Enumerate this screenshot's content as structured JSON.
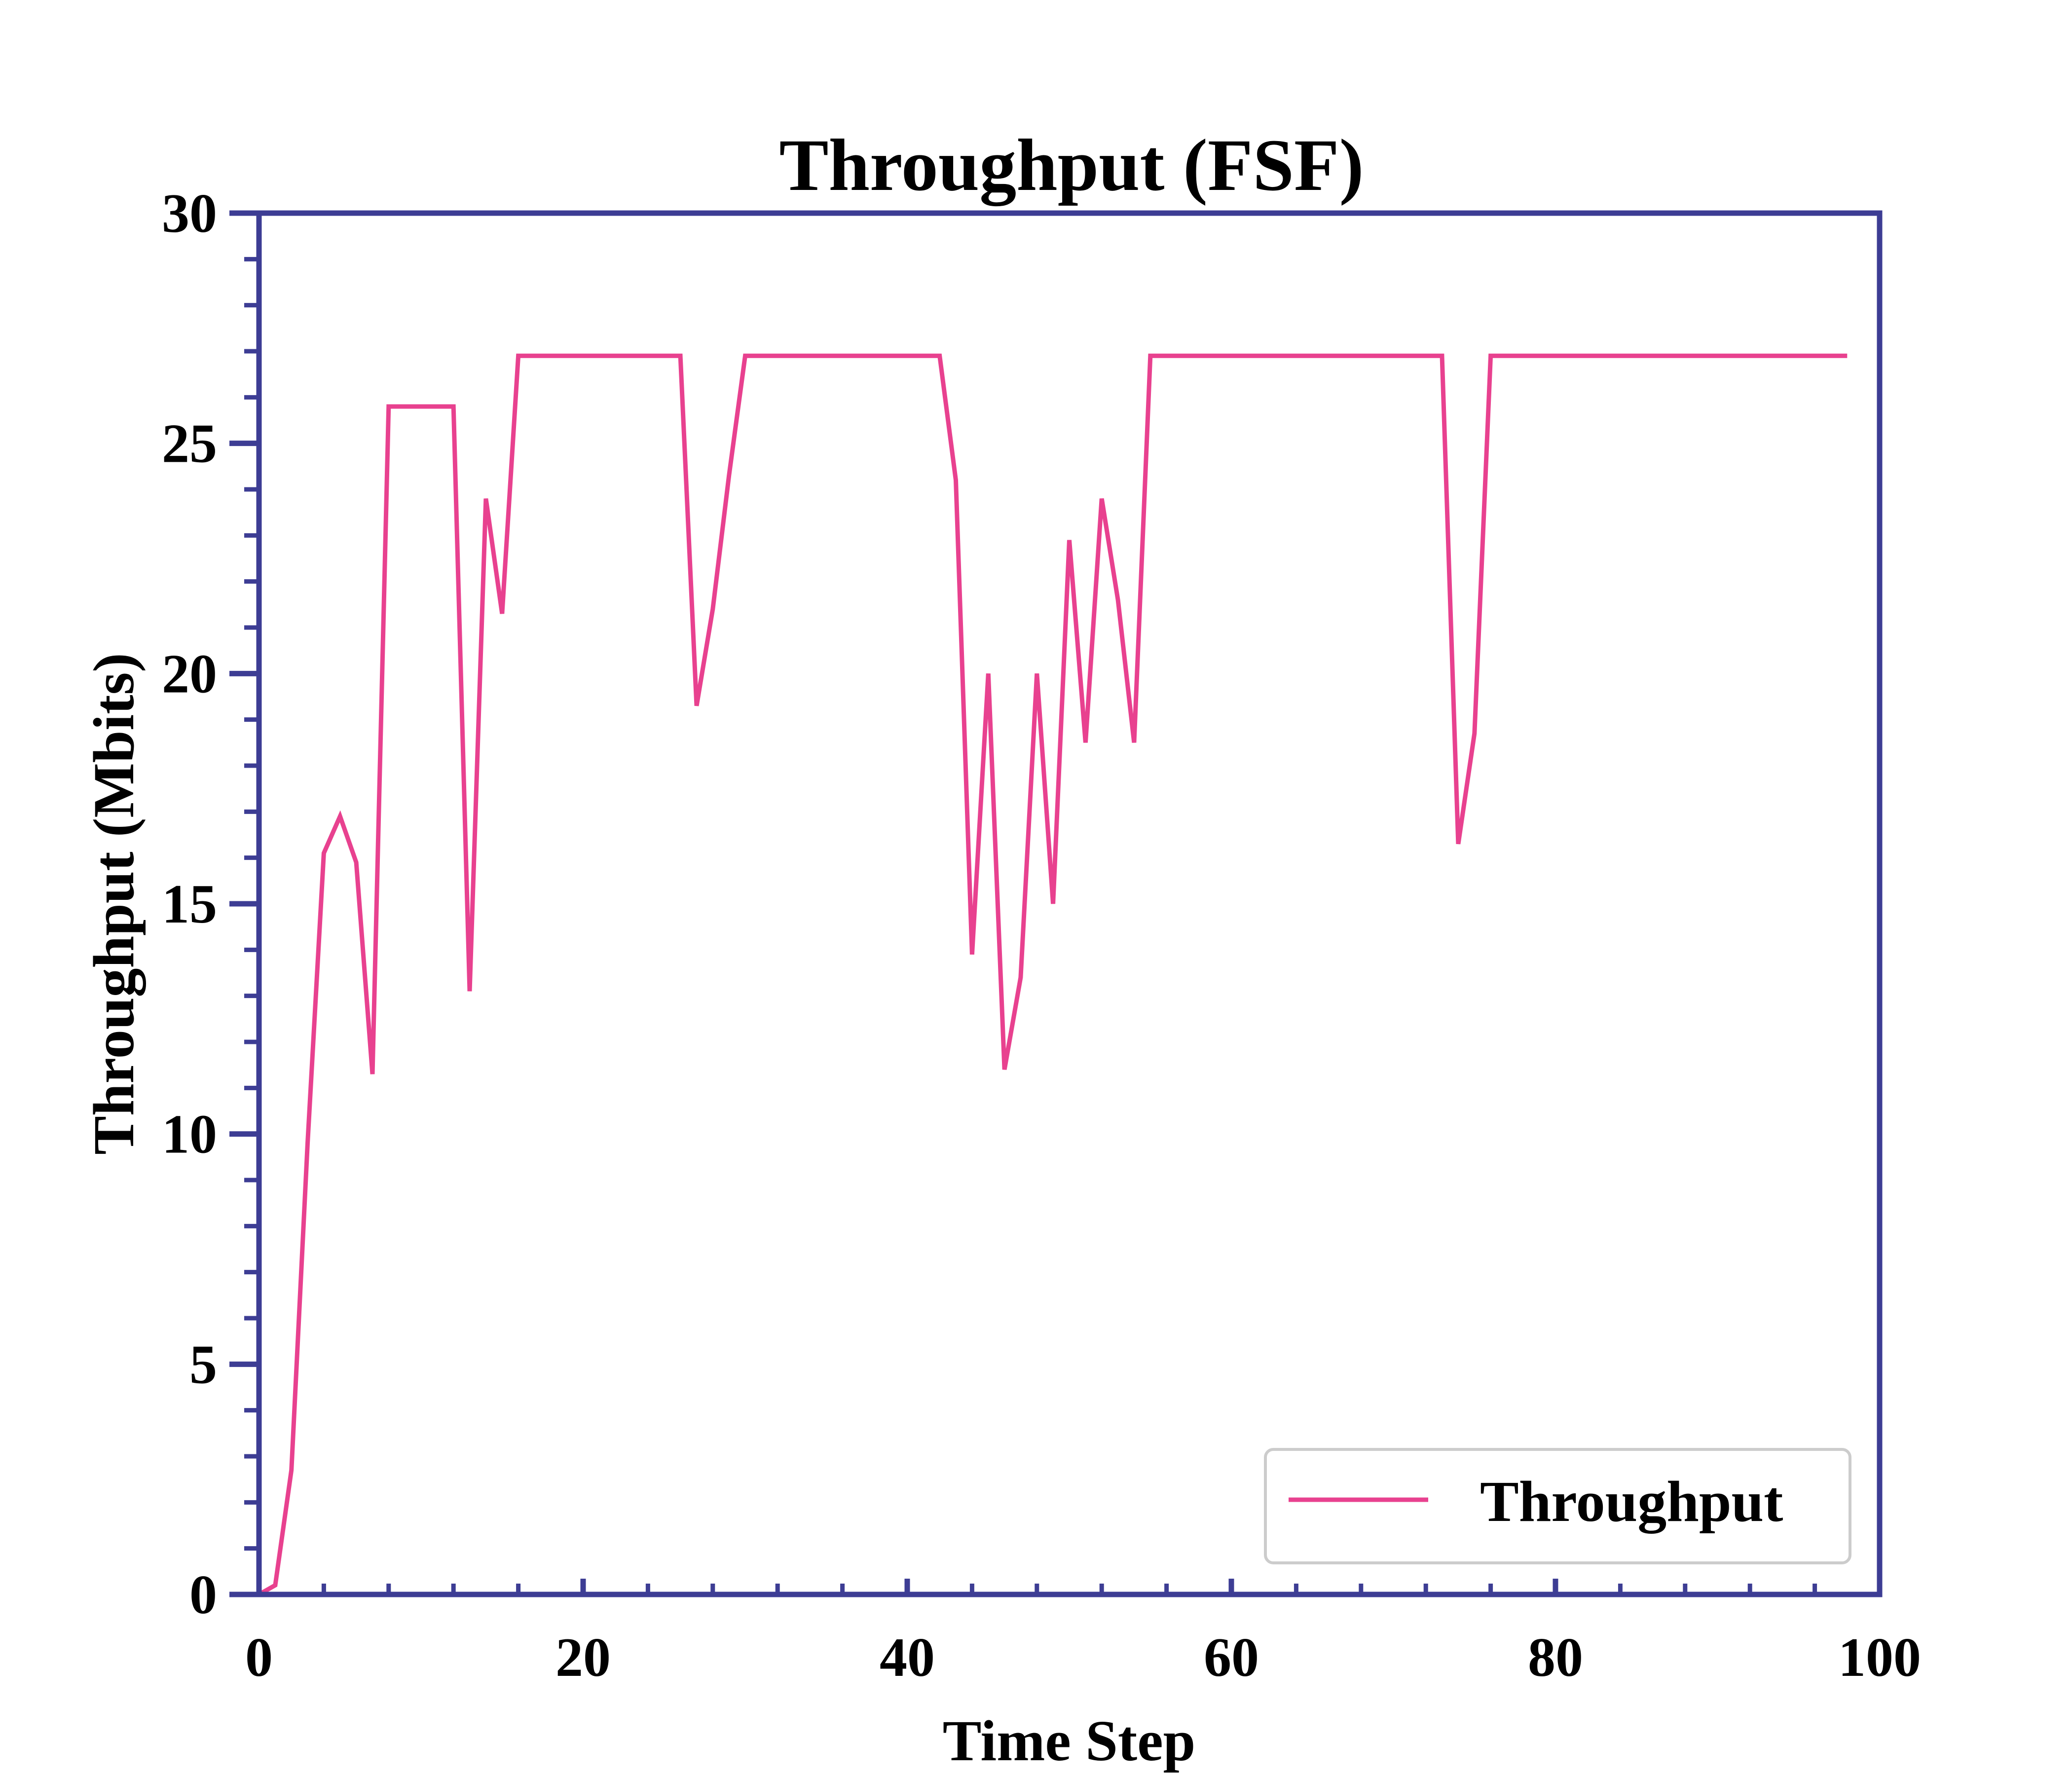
{
  "chart_data": {
    "type": "line",
    "title": "Throughput (FSF)",
    "xlabel": "Time Step",
    "ylabel": "Throughput (Mbits)",
    "xlim": [
      0,
      100
    ],
    "ylim": [
      0,
      30
    ],
    "x_ticks": [
      0,
      20,
      40,
      60,
      80,
      100
    ],
    "y_ticks": [
      0,
      5,
      10,
      15,
      20,
      25,
      30
    ],
    "grid": false,
    "legend_position": "lower-right",
    "colors": {
      "axis": "#3d3d94",
      "series": "#e8418f",
      "legend_border": "#cccccc"
    },
    "series": [
      {
        "name": "Throughput",
        "x": [
          0,
          1,
          2,
          3,
          4,
          5,
          6,
          7,
          8,
          9,
          10,
          11,
          12,
          13,
          14,
          15,
          16,
          17,
          18,
          19,
          20,
          21,
          22,
          23,
          24,
          25,
          26,
          27,
          28,
          29,
          30,
          31,
          32,
          33,
          34,
          35,
          36,
          37,
          38,
          39,
          40,
          41,
          42,
          43,
          44,
          45,
          46,
          47,
          48,
          49,
          50,
          51,
          52,
          53,
          54,
          55,
          56,
          57,
          58,
          59,
          60,
          61,
          62,
          63,
          64,
          65,
          66,
          67,
          68,
          69,
          70,
          71,
          72,
          73,
          74,
          75,
          76,
          77,
          78,
          79,
          80,
          81,
          82,
          83,
          84,
          85,
          86,
          87,
          88,
          89,
          90,
          91,
          92,
          93,
          94,
          95,
          96,
          97,
          98
        ],
        "y": [
          0,
          0.2,
          2.7,
          9.8,
          16.1,
          16.9,
          15.9,
          11.3,
          25.8,
          25.8,
          25.8,
          25.8,
          25.8,
          13.1,
          23.8,
          21.3,
          26.9,
          26.9,
          26.9,
          26.9,
          26.9,
          26.9,
          26.9,
          26.9,
          26.9,
          26.9,
          26.9,
          19.3,
          21.4,
          24.3,
          26.9,
          26.9,
          26.9,
          26.9,
          26.9,
          26.9,
          26.9,
          26.9,
          26.9,
          26.9,
          26.9,
          26.9,
          26.9,
          24.2,
          13.9,
          20.0,
          11.4,
          13.4,
          20.0,
          15.0,
          22.9,
          18.5,
          23.8,
          21.6,
          18.5,
          26.9,
          26.9,
          26.9,
          26.9,
          26.9,
          26.9,
          26.9,
          26.9,
          26.9,
          26.9,
          26.9,
          26.9,
          26.9,
          26.9,
          26.9,
          26.9,
          26.9,
          26.9,
          26.9,
          16.3,
          18.7,
          26.9,
          26.9,
          26.9,
          26.9,
          26.9,
          26.9,
          26.9,
          26.9,
          26.9,
          26.9,
          26.9,
          26.9,
          26.9,
          26.9,
          26.9,
          26.9,
          26.9,
          26.9,
          26.9,
          26.9,
          26.9,
          26.9,
          26.9
        ]
      }
    ]
  }
}
